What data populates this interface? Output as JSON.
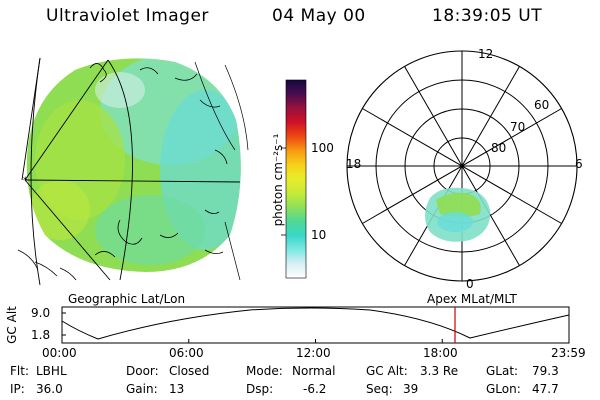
{
  "header": {
    "instrument": "Ultraviolet Imager",
    "date": "04 May 00",
    "time": "18:39:05 UT"
  },
  "geo_panel": {
    "label": "Geographic Lat/Lon"
  },
  "colorbar": {
    "unit_label": "photon cm⁻²s⁻¹",
    "ticks": [
      "100",
      "10"
    ],
    "colors": [
      "#ffffff",
      "#d8f0f4",
      "#7fe7e4",
      "#38d8c8",
      "#4fd896",
      "#8ee05a",
      "#c6ea3a",
      "#e8ec2a",
      "#f6d21a",
      "#f79a10",
      "#ee4812",
      "#d01226",
      "#98123c",
      "#4a0c50",
      "#140a40"
    ]
  },
  "polar_panel": {
    "label": "Apex MLat/MLT",
    "mlt_labels": {
      "top": "12",
      "left": "18",
      "right": "6",
      "bottom": "0"
    },
    "mlat_labels": [
      "60",
      "70",
      "80"
    ]
  },
  "altitude_plot": {
    "ylabel": "GC Alt",
    "y_ticks": [
      "9.0",
      "1.8"
    ],
    "x_ticks": [
      "00:00",
      "06:00",
      "12:00",
      "18:00",
      "23:59"
    ],
    "current_marker_color": "#cc0000"
  },
  "info": {
    "flt_label": "Flt:",
    "flt_value": "LBHL",
    "ip_label": "IP:",
    "ip_value": "36.0",
    "door_label": "Door:",
    "door_value": "Closed",
    "gain_label": "Gain:",
    "gain_value": "13",
    "mode_label": "Mode:",
    "mode_value": "Normal",
    "dsp_label": "Dsp:",
    "dsp_value": "-6.2",
    "gcalt_label": "GC Alt:",
    "gcalt_value": "3.3 Re",
    "seq_label": "Seq:",
    "seq_value": "39",
    "glat_label": "GLat:",
    "glat_value": "79.3",
    "glon_label": "GLon:",
    "glon_value": "47.7"
  }
}
